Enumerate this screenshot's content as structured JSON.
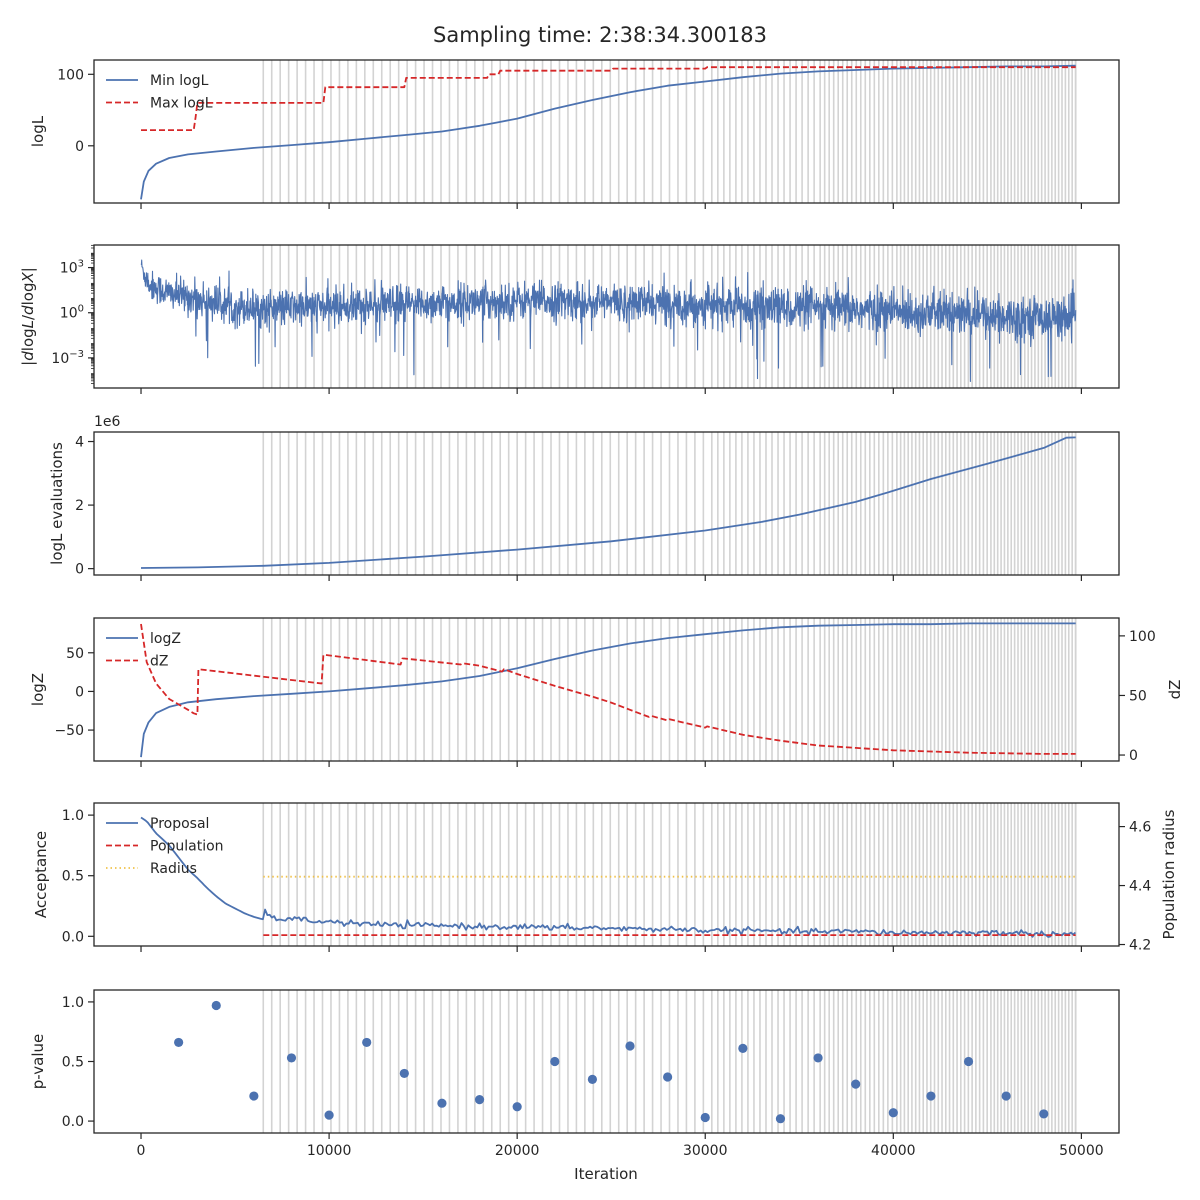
{
  "figure": {
    "title": "Sampling time: 2:38:34.300183",
    "xlabel": "Iteration",
    "x_ticks": [
      "0",
      "10000",
      "20000",
      "30000",
      "40000",
      "50000"
    ]
  },
  "colors": {
    "blue": "#4c72b0",
    "red": "#d62728",
    "yellow": "#f0c24a",
    "band": "#d3d3d3"
  },
  "chart_data": [
    {
      "type": "line",
      "ylabel": "logL",
      "xlim": [
        -2500,
        52000
      ],
      "ylim": [
        -80,
        120
      ],
      "y_ticks": [
        "0",
        "100"
      ],
      "legend_placement": "top-left",
      "vertical_bands": {
        "dense_from": 6500,
        "to": 49700
      },
      "series": [
        {
          "name": "Min logL",
          "style": "solid",
          "color": "blue",
          "x": [
            0,
            150,
            400,
            800,
            1500,
            2500,
            4000,
            6000,
            8000,
            10000,
            12000,
            14000,
            16000,
            18000,
            19000,
            20000,
            22000,
            24000,
            26000,
            28000,
            30000,
            32000,
            34000,
            36000,
            38000,
            40000,
            42000,
            44000,
            46000,
            48000,
            49700
          ],
          "y": [
            -75,
            -50,
            -35,
            -25,
            -17,
            -12,
            -8,
            -3,
            1,
            5,
            10,
            15,
            20,
            28,
            33,
            38,
            52,
            64,
            75,
            84,
            90,
            96,
            101,
            104,
            106,
            108,
            109,
            110,
            111,
            111,
            112
          ]
        },
        {
          "name": "Max logL",
          "style": "dashed",
          "color": "red",
          "x": [
            0,
            2800,
            2900,
            3000,
            9700,
            9800,
            14000,
            14100,
            18400,
            18500,
            19000,
            19100,
            25000,
            25100,
            30000,
            30100,
            49700
          ],
          "y": [
            22,
            22,
            40,
            60,
            60,
            82,
            82,
            95,
            95,
            100,
            100,
            105,
            105,
            108,
            108,
            110,
            110
          ]
        }
      ]
    },
    {
      "type": "line",
      "ylabel_html": [
        "|",
        "d",
        "log",
        "L",
        "/",
        "d",
        "log",
        "X",
        "|"
      ],
      "yscale": "log",
      "xlim": [
        -2500,
        52000
      ],
      "ylim_exp": [
        -5.0,
        4.5
      ],
      "y_ticks": [
        {
          "base": "10",
          "exp": "3",
          "value": 3
        },
        {
          "base": "10",
          "exp": "0",
          "value": 0
        },
        {
          "base": "10",
          "exp": "−3",
          "value": -3
        }
      ],
      "vertical_bands": {
        "dense_from": 6500,
        "to": 49700
      },
      "series": [
        {
          "name": "",
          "style": "solid",
          "color": "blue",
          "noise": true,
          "x": [
            0,
            150,
            500,
            1500,
            3000,
            5000,
            7000,
            10000,
            15000,
            20000,
            25000,
            30000,
            35000,
            40000,
            45000,
            49700
          ],
          "center_log10": [
            3.3,
            2.6,
            1.8,
            1.3,
            0.9,
            0.4,
            0.3,
            0.4,
            0.6,
            0.8,
            0.7,
            0.5,
            0.3,
            0.1,
            -0.2,
            -0.3
          ],
          "spread_log10": [
            0.6,
            1.0,
            1.3,
            1.4,
            1.5,
            1.6,
            1.6,
            1.6,
            1.6,
            1.6,
            1.6,
            1.7,
            1.8,
            1.8,
            1.8,
            1.7
          ]
        }
      ]
    },
    {
      "type": "line",
      "ylabel": "logL evaluations",
      "offset_text": "1e6",
      "xlim": [
        -2500,
        52000
      ],
      "ylim": [
        -0.2,
        4.3
      ],
      "y_ticks": [
        "0",
        "2",
        "4"
      ],
      "vertical_bands": {
        "dense_from": 6500,
        "to": 49700
      },
      "series": [
        {
          "name": "",
          "style": "solid",
          "color": "blue",
          "x": [
            0,
            3000,
            6500,
            10000,
            15000,
            20000,
            25000,
            30000,
            33000,
            35000,
            38000,
            40000,
            42000,
            45000,
            48000,
            49200,
            49700
          ],
          "y": [
            0.02,
            0.04,
            0.09,
            0.18,
            0.38,
            0.6,
            0.86,
            1.2,
            1.47,
            1.7,
            2.1,
            2.45,
            2.82,
            3.3,
            3.8,
            4.12,
            4.13
          ]
        }
      ]
    },
    {
      "type": "line",
      "ylabel": "logZ",
      "ylabel_right": "dZ",
      "xlim": [
        -2500,
        52000
      ],
      "ylim": [
        -90,
        95
      ],
      "ylim_right": [
        -5,
        115
      ],
      "y_ticks": [
        "−50",
        "0",
        "50"
      ],
      "y_ticks_right": [
        "0",
        "50",
        "100"
      ],
      "legend_placement": "top-left",
      "vertical_bands": {
        "dense_from": 6500,
        "to": 49700
      },
      "series": [
        {
          "name": "logZ",
          "style": "solid",
          "color": "blue",
          "axis": "left",
          "x": [
            0,
            150,
            400,
            800,
            1500,
            2500,
            4000,
            6000,
            8000,
            10000,
            12000,
            14000,
            16000,
            18000,
            19000,
            20000,
            22000,
            24000,
            26000,
            28000,
            30000,
            32000,
            34000,
            36000,
            38000,
            40000,
            42000,
            44000,
            46000,
            48000,
            49700
          ],
          "y": [
            -85,
            -55,
            -40,
            -28,
            -20,
            -14,
            -10,
            -6,
            -3,
            0,
            4,
            8,
            13,
            20,
            25,
            30,
            42,
            53,
            62,
            69,
            74,
            79,
            83,
            85,
            86,
            87,
            87,
            88,
            88,
            88,
            88
          ]
        },
        {
          "name": "dZ",
          "style": "dashed",
          "color": "red",
          "axis": "right",
          "x": [
            0,
            300,
            800,
            1500,
            2500,
            2800,
            3000,
            3050,
            9600,
            9700,
            9800,
            13800,
            13900,
            14000,
            17000,
            17100,
            18000,
            19200,
            19300,
            20000,
            22000,
            24000,
            25000,
            26000,
            27000,
            27100,
            28000,
            28100,
            30000,
            30100,
            32000,
            34000,
            36000,
            38000,
            40000,
            42000,
            44000,
            46000,
            48000,
            49700
          ],
          "y": [
            110,
            78,
            60,
            47,
            38,
            35,
            34,
            72,
            60,
            84,
            84,
            76,
            81,
            81,
            76,
            77,
            75,
            70,
            72,
            68,
            58,
            49,
            44,
            38,
            32,
            33,
            29,
            30,
            23,
            24,
            17,
            12,
            8,
            6,
            4,
            3,
            2,
            1.5,
            1,
            1
          ]
        }
      ]
    },
    {
      "type": "line",
      "ylabel": "Acceptance",
      "ylabel_right": "Population radius",
      "xlim": [
        -2500,
        52000
      ],
      "ylim": [
        -0.08,
        1.1
      ],
      "ylim_right": [
        4.195,
        4.68
      ],
      "y_ticks": [
        "0.0",
        "0.5",
        "1.0"
      ],
      "y_ticks_right": [
        "4.2",
        "4.4",
        "4.6"
      ],
      "legend_placement": "top-left",
      "vertical_bands": {
        "dense_from": 6500,
        "to": 49700
      },
      "series": [
        {
          "name": "Proposal",
          "style": "solid",
          "color": "blue",
          "axis": "left",
          "noise_small": true,
          "x": [
            0,
            300,
            800,
            1500,
            2000,
            2500,
            3000,
            3500,
            4000,
            4500,
            5000,
            5500,
            6000,
            6500,
            6600,
            6700,
            7000,
            8000,
            9000,
            10000,
            12000,
            14000,
            16000,
            18000,
            20000,
            22000,
            24000,
            26000,
            28000,
            30000,
            32000,
            34000,
            36000,
            38000,
            40000,
            42000,
            44000,
            46000,
            48000,
            49700
          ],
          "y": [
            0.98,
            0.95,
            0.85,
            0.75,
            0.65,
            0.55,
            0.48,
            0.4,
            0.33,
            0.27,
            0.23,
            0.19,
            0.16,
            0.14,
            0.22,
            0.16,
            0.15,
            0.14,
            0.13,
            0.12,
            0.1,
            0.09,
            0.09,
            0.08,
            0.08,
            0.07,
            0.07,
            0.06,
            0.06,
            0.05,
            0.05,
            0.04,
            0.04,
            0.04,
            0.03,
            0.03,
            0.03,
            0.03,
            0.02,
            0.02
          ]
        },
        {
          "name": "Population",
          "style": "dashed",
          "color": "red",
          "axis": "left",
          "x": [
            6500,
            49700
          ],
          "y": [
            0.01,
            0.01
          ]
        },
        {
          "name": "Radius",
          "style": "dotted",
          "color": "yellow",
          "axis": "right",
          "x": [
            6500,
            49700
          ],
          "y": [
            4.43,
            4.43
          ]
        }
      ]
    },
    {
      "type": "scatter",
      "ylabel": "p-value",
      "xlim": [
        -2500,
        52000
      ],
      "ylim": [
        -0.1,
        1.1
      ],
      "y_ticks": [
        "0.0",
        "0.5",
        "1.0"
      ],
      "vertical_bands": {
        "dense_from": 6500,
        "to": 49700
      },
      "series": [
        {
          "name": "",
          "color": "blue",
          "x": [
            2000,
            4000,
            6000,
            8000,
            10000,
            12000,
            14000,
            16000,
            18000,
            20000,
            22000,
            24000,
            26000,
            28000,
            30000,
            32000,
            34000,
            36000,
            38000,
            40000,
            42000,
            44000,
            46000,
            48000
          ],
          "y": [
            0.66,
            0.97,
            0.21,
            0.53,
            0.05,
            0.66,
            0.4,
            0.15,
            0.18,
            0.12,
            0.5,
            0.35,
            0.63,
            0.37,
            0.03,
            0.61,
            0.02,
            0.53,
            0.31,
            0.07,
            0.21,
            0.5,
            0.21,
            0.06
          ]
        }
      ]
    }
  ]
}
